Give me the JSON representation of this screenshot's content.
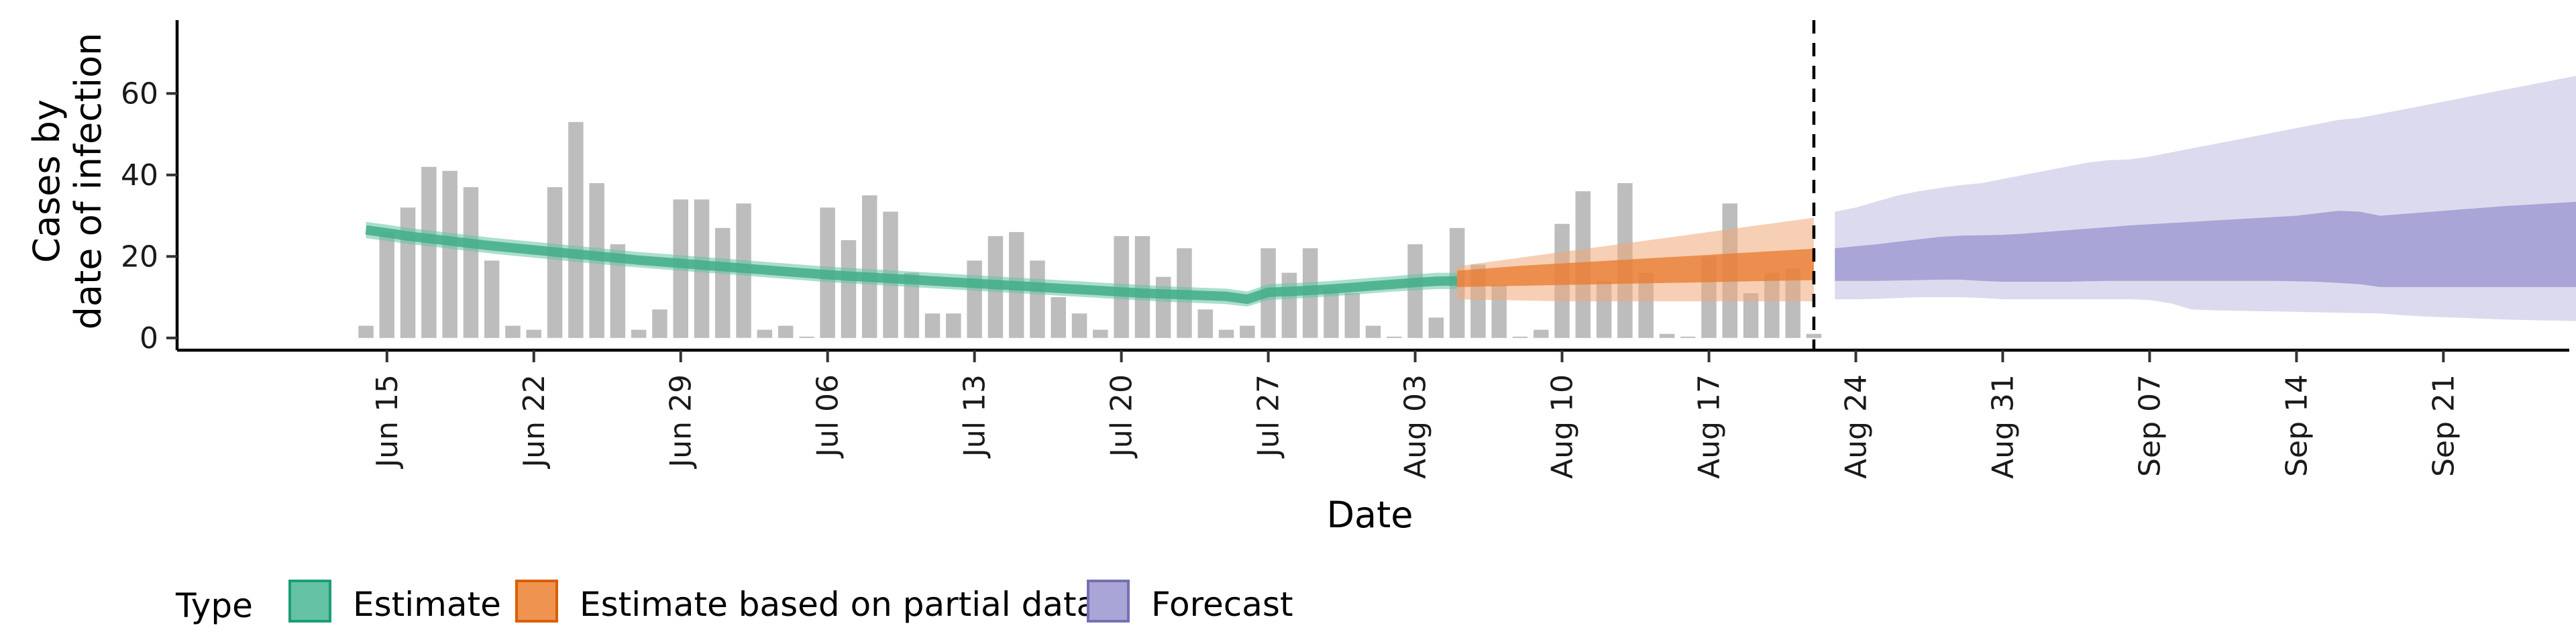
{
  "chart_data": {
    "type": "area",
    "xlabel": "Date",
    "ylabel_lines": [
      "Cases by",
      "date of infection"
    ],
    "x_range": [
      "2020-06-05",
      "2020-09-27"
    ],
    "ylim": [
      -3,
      78
    ],
    "y_ticks": [
      0,
      20,
      40,
      60
    ],
    "x_ticks": [
      {
        "date": "2020-06-15",
        "label": "Jun 15"
      },
      {
        "date": "2020-06-22",
        "label": "Jun 22"
      },
      {
        "date": "2020-06-29",
        "label": "Jun 29"
      },
      {
        "date": "2020-07-06",
        "label": "Jul 06"
      },
      {
        "date": "2020-07-13",
        "label": "Jul 13"
      },
      {
        "date": "2020-07-20",
        "label": "Jul 20"
      },
      {
        "date": "2020-07-27",
        "label": "Jul 27"
      },
      {
        "date": "2020-08-03",
        "label": "Aug 03"
      },
      {
        "date": "2020-08-10",
        "label": "Aug 10"
      },
      {
        "date": "2020-08-17",
        "label": "Aug 17"
      },
      {
        "date": "2020-08-24",
        "label": "Aug 24"
      },
      {
        "date": "2020-08-31",
        "label": "Aug 31"
      },
      {
        "date": "2020-09-07",
        "label": "Sep 07"
      },
      {
        "date": "2020-09-14",
        "label": "Sep 14"
      },
      {
        "date": "2020-09-21",
        "label": "Sep 21"
      }
    ],
    "forecast_cutoff": "2020-08-22",
    "grid": false,
    "legend": {
      "position": "bottom",
      "title": "Type",
      "entries": [
        {
          "label": "Estimate",
          "fill": "#66c2a5",
          "stroke": "#1b9e77"
        },
        {
          "label": "Estimate based on partial data",
          "fill": "#ef9350",
          "stroke": "#d95f02"
        },
        {
          "label": "Forecast",
          "fill": "#a9a5d6",
          "stroke": "#7570b3"
        }
      ]
    },
    "observed_cases": {
      "color": "#bdbdbd",
      "start": "2020-06-14",
      "values": [
        3,
        26,
        32,
        42,
        41,
        37,
        19,
        3,
        2,
        37,
        53,
        38,
        23,
        2,
        7,
        34,
        34,
        27,
        33,
        2,
        3,
        0,
        32,
        24,
        35,
        31,
        16,
        6,
        6,
        19,
        25,
        26,
        19,
        10,
        6,
        2,
        25,
        25,
        15,
        22,
        7,
        2,
        3,
        22,
        16,
        22,
        12,
        11,
        3,
        0,
        23,
        5,
        27,
        18,
        13,
        0,
        2,
        28,
        36,
        14,
        38,
        16,
        1,
        0,
        20,
        33,
        11,
        16,
        17,
        1
      ]
    },
    "series": [
      {
        "name": "Estimate",
        "color": "#1b9e77",
        "start": "2020-06-14",
        "values": [
          26.5,
          25.8,
          25,
          24.4,
          23.8,
          23.2,
          22.6,
          22.1,
          21.6,
          21.1,
          20.6,
          20.1,
          19.6,
          19.1,
          18.7,
          18.3,
          17.9,
          17.5,
          17.1,
          16.7,
          16.3,
          15.9,
          15.5,
          15.2,
          14.9,
          14.6,
          14.3,
          14,
          13.7,
          13.4,
          13.1,
          12.8,
          12.5,
          12.2,
          11.9,
          11.6,
          11.3,
          11,
          10.8,
          10.6,
          10.4,
          10.2,
          9.5,
          11.2,
          11.4,
          11.7,
          12,
          12.4,
          12.8,
          13.2,
          13.6,
          13.9,
          14
        ],
        "band_low": [
          24.5,
          23.8,
          23.1,
          22.5,
          21.9,
          21.3,
          20.7,
          20.2,
          19.7,
          19.2,
          18.7,
          18.2,
          17.7,
          17.3,
          16.9,
          16.5,
          16.1,
          15.7,
          15.3,
          14.9,
          14.5,
          14.1,
          13.7,
          13.4,
          13.1,
          12.8,
          12.5,
          12.2,
          11.9,
          11.6,
          11.3,
          11,
          10.7,
          10.4,
          10.1,
          9.8,
          9.5,
          9.2,
          8.9,
          8.7,
          8.5,
          8.3,
          7.7,
          9.3,
          9.6,
          9.9,
          10.2,
          10.6,
          11,
          11.4,
          11.7,
          12,
          12
        ],
        "band_high": [
          28.5,
          27.8,
          27,
          26.4,
          25.8,
          25.2,
          24.6,
          24.1,
          23.6,
          23.1,
          22.6,
          22.1,
          21.6,
          21.1,
          20.7,
          20.3,
          19.9,
          19.5,
          19.1,
          18.7,
          18.3,
          17.9,
          17.5,
          17.2,
          16.9,
          16.6,
          16.3,
          16,
          15.7,
          15.4,
          15.1,
          14.8,
          14.5,
          14.2,
          13.9,
          13.6,
          13.3,
          13,
          12.7,
          12.5,
          12.3,
          12.1,
          11.4,
          13.2,
          13.4,
          13.7,
          14,
          14.4,
          14.8,
          15.2,
          15.6,
          16,
          16
        ]
      },
      {
        "name": "Estimate based on partial data",
        "color": "#d95f02",
        "start": "2020-08-05",
        "values": [
          14.4,
          14.6,
          14.8,
          15.0,
          15.2,
          15.4,
          15.6,
          15.8,
          16.0,
          16.2,
          16.4,
          16.6,
          16.8,
          17.0,
          17.2,
          17.4,
          17.6,
          17.8
        ],
        "inner_low": [
          12.5,
          12.6,
          12.7,
          12.8,
          12.9,
          13.0,
          13.1,
          13.2,
          13.3,
          13.4,
          13.5,
          13.6,
          13.7,
          13.8,
          13.9,
          14.0,
          14.1,
          14.2
        ],
        "inner_high": [
          16.5,
          16.9,
          17.3,
          17.7,
          18.0,
          18.3,
          18.6,
          18.9,
          19.2,
          19.5,
          19.8,
          20.1,
          20.4,
          20.7,
          21.0,
          21.3,
          21.6,
          21.9
        ],
        "outer_low": [
          9.5,
          9.4,
          9.3,
          9.2,
          9.1,
          9.0,
          9.0,
          9.0,
          9.0,
          9.0,
          9.0,
          9.0,
          9.0,
          9.0,
          9.0,
          9.0,
          9.0,
          9.0
        ],
        "outer_high": [
          17.5,
          18.3,
          19.0,
          19.7,
          20.4,
          21.1,
          21.8,
          22.5,
          23.2,
          23.9,
          24.6,
          25.3,
          26.0,
          26.7,
          27.4,
          28.1,
          28.8,
          29.5
        ]
      },
      {
        "name": "Forecast",
        "color": "#7570b3",
        "start": "2020-08-23",
        "inner_low": [
          14,
          14,
          14,
          14.1,
          14.2,
          14.3,
          14.3,
          14,
          13.8,
          13.8,
          13.8,
          13.8,
          13.9,
          14,
          14,
          14,
          14,
          14,
          14,
          14,
          14,
          14,
          13.9,
          13.8,
          13.5,
          13.2,
          12.5,
          12.5,
          12.5,
          12.5,
          12.5,
          12.5,
          12.5,
          12.5,
          12.5,
          12.5,
          12.5,
          12.3,
          10,
          10,
          10,
          10,
          10
        ],
        "inner_high": [
          22,
          22.5,
          23,
          23.6,
          24.2,
          24.8,
          25.1,
          25.2,
          25.3,
          25.6,
          26,
          26.4,
          26.8,
          27.2,
          27.6,
          27.9,
          28.2,
          28.5,
          28.8,
          29.1,
          29.4,
          29.7,
          30,
          30.6,
          31.2,
          31,
          30,
          30.4,
          30.8,
          31.2,
          31.6,
          32,
          32.4,
          32.7,
          33,
          33.3,
          33.6,
          34,
          32.6,
          32.8,
          33,
          33.2,
          33.4
        ],
        "outer_low": [
          9.5,
          9.5,
          9.6,
          9.8,
          10,
          10,
          10,
          9.8,
          9.5,
          9.5,
          9.5,
          9.5,
          9.5,
          9.5,
          9.5,
          9.3,
          8.5,
          7,
          6.8,
          6.7,
          6.6,
          6.5,
          6.4,
          6.3,
          6.2,
          6.1,
          6,
          5.6,
          5.3,
          5.1,
          4.9,
          4.7,
          4.5,
          4.4,
          4.3,
          4.2,
          4.1,
          4,
          4,
          4,
          4,
          4,
          4
        ],
        "outer_high": [
          31,
          32,
          33.5,
          35,
          36,
          36.8,
          37.5,
          38,
          39,
          40,
          41,
          42,
          43,
          43.6,
          43.8,
          44.5,
          45.5,
          46.5,
          47.5,
          48.5,
          49.5,
          50.5,
          51.5,
          52.5,
          53.5,
          54,
          55,
          56,
          57,
          58,
          59,
          60,
          61,
          62,
          63,
          64,
          65,
          66,
          67.5,
          69,
          70.5,
          72,
          74
        ]
      }
    ]
  }
}
